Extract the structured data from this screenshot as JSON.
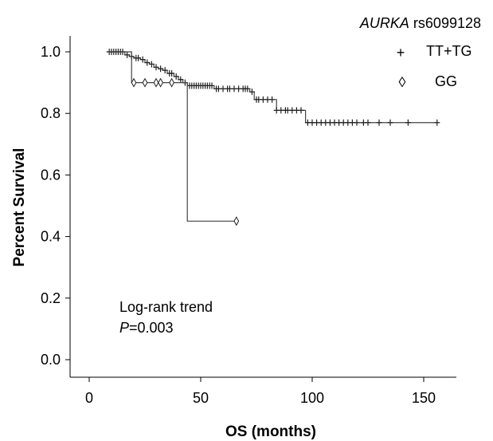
{
  "chart_data": {
    "type": "line",
    "title": "AURKA rs6099128",
    "title_italic": "AURKA",
    "title_rest": " rs6099128",
    "xlabel": "OS (months)",
    "ylabel": "Percent Survival",
    "xlim": [
      -10,
      170
    ],
    "ylim": [
      -0.05,
      1.06
    ],
    "x_ticks": [
      0,
      50,
      100,
      150
    ],
    "x_tick_labels": [
      "0",
      "50",
      "100",
      "150"
    ],
    "y_ticks": [
      0.0,
      0.2,
      0.4,
      0.6,
      0.8,
      1.0
    ],
    "y_tick_labels": [
      "0.0",
      "0.2",
      "0.4",
      "0.6",
      "0.8",
      "1.0"
    ],
    "grid": false,
    "legend_position": "top-right",
    "series": [
      {
        "name": "TT+TG",
        "marker": "+",
        "color": "#444444",
        "steps": [
          [
            8,
            1.0
          ],
          [
            16,
            0.99
          ],
          [
            18,
            0.985
          ],
          [
            20,
            0.98
          ],
          [
            23,
            0.975
          ],
          [
            25,
            0.965
          ],
          [
            27,
            0.96
          ],
          [
            29,
            0.95
          ],
          [
            31,
            0.945
          ],
          [
            33,
            0.94
          ],
          [
            35,
            0.93
          ],
          [
            38,
            0.92
          ],
          [
            40,
            0.91
          ],
          [
            42,
            0.9
          ],
          [
            44,
            0.89
          ],
          [
            56,
            0.88
          ],
          [
            72,
            0.87
          ],
          [
            74,
            0.845
          ],
          [
            84,
            0.81
          ],
          [
            97,
            0.77
          ],
          [
            156,
            0.77
          ]
        ],
        "censor_x": [
          9,
          10,
          11,
          12,
          13,
          14,
          15,
          17,
          19,
          21,
          22,
          24,
          26,
          28,
          30,
          32,
          34,
          36,
          37,
          39,
          41,
          43,
          45,
          46,
          47,
          48,
          49,
          50,
          51,
          52,
          53,
          54,
          55,
          57,
          58,
          60,
          62,
          63,
          65,
          67,
          69,
          70,
          71,
          73,
          75,
          76,
          78,
          80,
          82,
          84,
          86,
          88,
          89,
          91,
          93,
          95,
          98,
          100,
          102,
          104,
          106,
          108,
          110,
          112,
          114,
          116,
          118,
          120,
          123,
          125,
          130,
          135,
          143,
          156
        ]
      },
      {
        "name": "GG",
        "marker": "◊",
        "color": "#444444",
        "steps": [
          [
            8,
            1.0
          ],
          [
            19,
            0.9
          ],
          [
            44,
            0.45
          ],
          [
            66,
            0.45
          ]
        ],
        "censor_x": [
          20,
          25,
          30,
          32,
          37,
          66
        ]
      }
    ],
    "annotations": {
      "test_name": "Log-rank trend",
      "p_label": "P",
      "p_value": "=0.003"
    }
  }
}
